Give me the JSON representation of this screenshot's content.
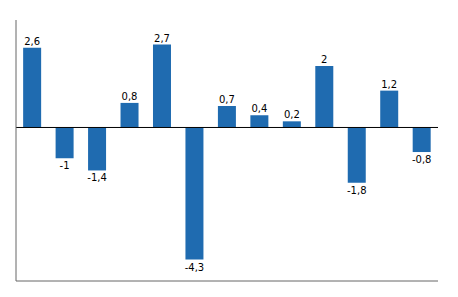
{
  "chart_data": {
    "type": "bar",
    "categories": [
      null,
      null,
      null,
      null,
      null,
      null,
      null,
      null,
      null,
      null,
      null,
      null,
      null
    ],
    "values": [
      2.6,
      -1.0,
      -1.4,
      0.8,
      2.7,
      -4.3,
      0.7,
      0.4,
      0.2,
      2.0,
      -1.8,
      1.2,
      -0.8
    ],
    "value_labels": [
      "2,6",
      "-1",
      "-1,4",
      "0,8",
      "2,7",
      "-4,3",
      "0,7",
      "0,4",
      "0,2",
      "2",
      "-1,8",
      "1,2",
      "-0,8"
    ],
    "color": "#1F6BB0",
    "ylim": [
      -5.0,
      3.5
    ],
    "data_labels": true,
    "tick_labels": false,
    "grid": false
  }
}
